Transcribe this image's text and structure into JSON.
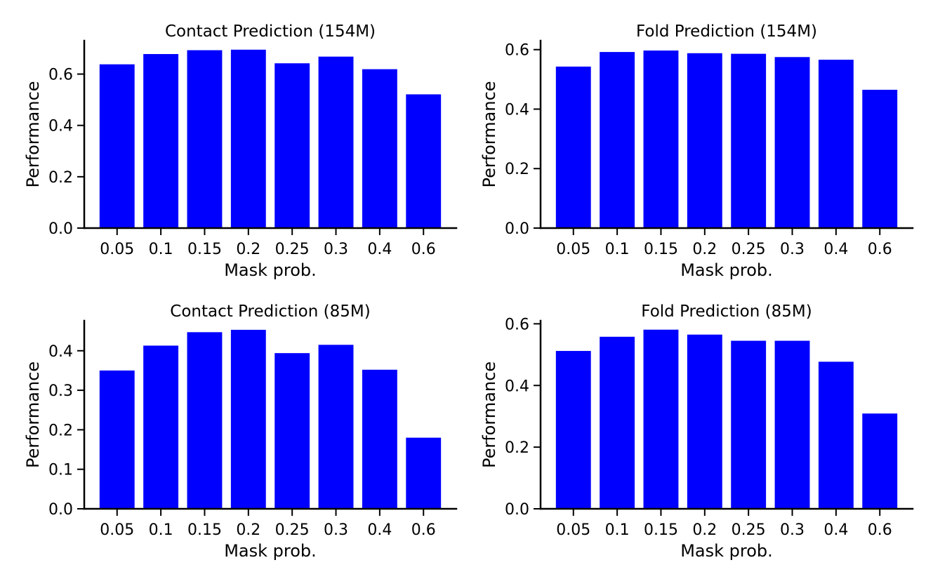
{
  "figure": {
    "background": "#ffffff"
  },
  "chart_data": [
    {
      "type": "bar",
      "title": "Contact Prediction (154M)",
      "xlabel": "Mask prob.",
      "ylabel": "Performance",
      "categories": [
        "0.05",
        "0.1",
        "0.15",
        "0.2",
        "0.25",
        "0.3",
        "0.4",
        "0.6"
      ],
      "values": [
        0.638,
        0.678,
        0.693,
        0.695,
        0.642,
        0.668,
        0.619,
        0.521
      ],
      "ylim": [
        0,
        0.73
      ],
      "yticks": [
        0.0,
        0.2,
        0.4,
        0.6
      ],
      "ytick_labels": [
        "0.0",
        "0.2",
        "0.4",
        "0.6"
      ],
      "color": "#0000ff",
      "grid": false,
      "legend": false
    },
    {
      "type": "bar",
      "title": "Fold Prediction (154M)",
      "xlabel": "Mask prob.",
      "ylabel": "Performance",
      "categories": [
        "0.05",
        "0.1",
        "0.15",
        "0.2",
        "0.25",
        "0.3",
        "0.4",
        "0.6"
      ],
      "values": [
        0.543,
        0.592,
        0.597,
        0.588,
        0.586,
        0.575,
        0.566,
        0.465
      ],
      "ylim": [
        0,
        0.63
      ],
      "yticks": [
        0.0,
        0.2,
        0.4,
        0.6
      ],
      "ytick_labels": [
        "0.0",
        "0.2",
        "0.4",
        "0.6"
      ],
      "color": "#0000ff",
      "grid": false,
      "legend": false
    },
    {
      "type": "bar",
      "title": "Contact Prediction (85M)",
      "xlabel": "Mask prob.",
      "ylabel": "Performance",
      "categories": [
        "0.05",
        "0.1",
        "0.15",
        "0.2",
        "0.25",
        "0.3",
        "0.4",
        "0.6"
      ],
      "values": [
        0.35,
        0.413,
        0.447,
        0.453,
        0.394,
        0.415,
        0.352,
        0.18
      ],
      "ylim": [
        0,
        0.476
      ],
      "yticks": [
        0.0,
        0.1,
        0.2,
        0.3,
        0.4
      ],
      "ytick_labels": [
        "0.0",
        "0.1",
        "0.2",
        "0.3",
        "0.4"
      ],
      "color": "#0000ff",
      "grid": false,
      "legend": false
    },
    {
      "type": "bar",
      "title": "Fold Prediction (85M)",
      "xlabel": "Mask prob.",
      "ylabel": "Performance",
      "categories": [
        "0.05",
        "0.1",
        "0.15",
        "0.2",
        "0.25",
        "0.3",
        "0.4",
        "0.6"
      ],
      "values": [
        0.512,
        0.558,
        0.581,
        0.565,
        0.545,
        0.545,
        0.477,
        0.309
      ],
      "ylim": [
        0,
        0.61
      ],
      "yticks": [
        0.0,
        0.2,
        0.4,
        0.6
      ],
      "ytick_labels": [
        "0.0",
        "0.2",
        "0.4",
        "0.6"
      ],
      "color": "#0000ff",
      "grid": false,
      "legend": false
    }
  ]
}
